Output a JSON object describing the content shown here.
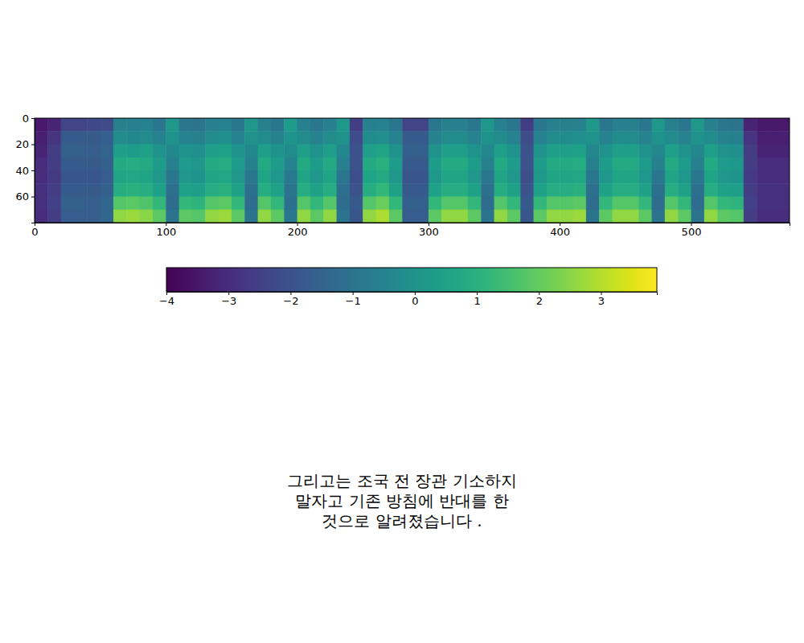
{
  "chart_data": {
    "type": "heatmap",
    "xlim": [
      0,
      575
    ],
    "ylim": [
      80,
      0
    ],
    "xticks": [
      0,
      100,
      200,
      300,
      400,
      500
    ],
    "yticks": [
      0,
      20,
      40,
      60
    ],
    "x_bins": [
      0,
      10,
      20,
      30,
      40,
      50,
      60,
      70,
      80,
      90,
      100,
      110,
      120,
      130,
      140,
      150,
      160,
      170,
      180,
      190,
      200,
      210,
      220,
      230,
      240,
      250,
      260,
      270,
      280,
      290,
      300,
      310,
      320,
      330,
      340,
      350,
      360,
      370,
      380,
      390,
      400,
      410,
      420,
      430,
      440,
      450,
      460,
      470,
      480,
      490,
      500,
      510,
      520,
      530,
      540,
      550,
      560,
      570,
      575
    ],
    "y_bins": [
      0,
      10,
      20,
      30,
      40,
      50,
      60,
      70,
      80
    ],
    "cells": [
      [
        -3.5,
        -3.3,
        -3.2,
        -3.0,
        -3.0,
        -2.9,
        -2.9,
        -3.0
      ],
      [
        -3.2,
        -2.8,
        -2.6,
        -2.6,
        -2.7,
        -2.6,
        -2.5,
        -2.6
      ],
      [
        -2.4,
        -1.8,
        -1.6,
        -1.8,
        -1.9,
        -1.8,
        -1.6,
        -1.7
      ],
      [
        -2.4,
        -1.8,
        -1.6,
        -1.8,
        -1.9,
        -1.8,
        -1.6,
        -1.7
      ],
      [
        -2.3,
        -1.8,
        -1.7,
        -1.8,
        -1.9,
        -1.8,
        -1.7,
        -1.7
      ],
      [
        -2.2,
        -1.6,
        -1.5,
        -1.6,
        -1.7,
        -1.6,
        -1.4,
        -1.4
      ],
      [
        -0.6,
        -0.2,
        0.4,
        0.8,
        0.6,
        0.9,
        1.8,
        2.6
      ],
      [
        -0.6,
        -0.3,
        0.3,
        0.9,
        0.7,
        1.0,
        1.9,
        2.7
      ],
      [
        -0.5,
        -0.2,
        0.5,
        0.8,
        0.6,
        0.9,
        1.7,
        2.5
      ],
      [
        -0.9,
        -0.5,
        0.0,
        0.3,
        0.2,
        0.5,
        1.2,
        1.9
      ],
      [
        0.2,
        0.0,
        -0.3,
        -0.6,
        -0.9,
        -1.1,
        -1.2,
        -1.0
      ],
      [
        -0.9,
        -0.5,
        0.0,
        0.3,
        0.2,
        0.5,
        1.2,
        1.9
      ],
      [
        -1.0,
        -0.6,
        -0.1,
        0.2,
        0.1,
        0.4,
        1.1,
        1.8
      ],
      [
        -0.6,
        -0.2,
        0.4,
        0.8,
        0.6,
        0.9,
        1.8,
        2.6
      ],
      [
        -0.5,
        -0.1,
        0.5,
        0.9,
        0.7,
        1.0,
        1.9,
        2.7
      ],
      [
        -0.9,
        -0.5,
        0.0,
        0.3,
        0.2,
        0.5,
        1.2,
        1.9
      ],
      [
        0.2,
        0.0,
        -0.3,
        -0.6,
        -0.9,
        -1.1,
        -1.2,
        -1.0
      ],
      [
        -0.6,
        -0.2,
        0.4,
        0.8,
        0.6,
        0.9,
        1.8,
        2.6
      ],
      [
        -0.9,
        -0.5,
        0.0,
        0.3,
        0.2,
        0.5,
        1.2,
        1.9
      ],
      [
        0.3,
        0.1,
        -0.2,
        -0.5,
        -0.8,
        -1.0,
        -1.1,
        -0.9
      ],
      [
        -0.6,
        -0.2,
        0.4,
        0.8,
        0.6,
        0.9,
        1.8,
        2.6
      ],
      [
        -0.9,
        -0.5,
        0.0,
        0.3,
        0.2,
        0.5,
        1.2,
        1.9
      ],
      [
        -0.6,
        -0.2,
        0.4,
        0.8,
        0.6,
        0.9,
        1.8,
        2.6
      ],
      [
        0.2,
        0.0,
        -0.3,
        -0.6,
        -0.9,
        -1.1,
        -1.2,
        -1.0
      ],
      [
        -2.6,
        -2.2,
        -2.0,
        -2.0,
        -2.1,
        -2.0,
        -1.8,
        -1.9
      ],
      [
        -0.6,
        -0.2,
        0.4,
        0.8,
        0.6,
        0.9,
        1.8,
        2.6
      ],
      [
        -0.5,
        -0.1,
        0.6,
        1.0,
        0.8,
        1.2,
        2.1,
        2.9
      ],
      [
        -0.9,
        -0.5,
        0.0,
        0.3,
        0.2,
        0.5,
        1.2,
        1.9
      ],
      [
        -2.4,
        -1.8,
        -1.6,
        -1.8,
        -1.9,
        -1.8,
        -1.6,
        -1.7
      ],
      [
        -2.4,
        -1.8,
        -1.6,
        -1.8,
        -1.9,
        -1.8,
        -1.6,
        -1.7
      ],
      [
        -0.9,
        -0.5,
        0.0,
        0.3,
        0.2,
        0.5,
        1.2,
        1.9
      ],
      [
        -0.6,
        -0.2,
        0.4,
        0.8,
        0.6,
        0.9,
        1.8,
        2.6
      ],
      [
        -0.6,
        -0.2,
        0.4,
        0.8,
        0.6,
        0.9,
        1.8,
        2.6
      ],
      [
        -0.9,
        -0.5,
        0.0,
        0.3,
        0.2,
        0.5,
        1.2,
        1.9
      ],
      [
        0.2,
        0.0,
        -0.3,
        -0.6,
        -0.9,
        -1.1,
        -1.2,
        -1.0
      ],
      [
        -0.6,
        -0.2,
        0.4,
        0.8,
        0.6,
        0.9,
        1.8,
        2.6
      ],
      [
        -0.9,
        -0.5,
        0.0,
        0.3,
        0.2,
        0.5,
        1.2,
        1.9
      ],
      [
        -2.6,
        -2.2,
        -2.0,
        -2.0,
        -2.1,
        -2.0,
        -1.8,
        -1.9
      ],
      [
        -0.9,
        -0.5,
        0.0,
        0.3,
        0.2,
        0.5,
        1.2,
        1.9
      ],
      [
        -0.6,
        -0.2,
        0.4,
        0.8,
        0.6,
        0.9,
        1.8,
        2.6
      ],
      [
        -0.6,
        -0.2,
        0.4,
        0.8,
        0.6,
        0.9,
        1.8,
        2.6
      ],
      [
        -0.5,
        -0.1,
        0.5,
        0.9,
        0.7,
        1.0,
        1.9,
        2.7
      ],
      [
        0.2,
        0.0,
        -0.3,
        -0.6,
        -0.9,
        -1.1,
        -1.2,
        -1.0
      ],
      [
        -0.9,
        -0.5,
        0.0,
        0.3,
        0.2,
        0.5,
        1.2,
        1.9
      ],
      [
        -0.6,
        -0.2,
        0.4,
        0.8,
        0.6,
        0.9,
        1.8,
        2.6
      ],
      [
        -0.6,
        -0.2,
        0.4,
        0.8,
        0.6,
        0.9,
        1.8,
        2.6
      ],
      [
        -0.9,
        -0.5,
        0.0,
        0.3,
        0.2,
        0.5,
        1.2,
        1.9
      ],
      [
        0.2,
        0.0,
        -0.3,
        -0.6,
        -0.9,
        -1.1,
        -1.2,
        -1.0
      ],
      [
        -0.6,
        -0.2,
        0.4,
        0.8,
        0.6,
        0.9,
        1.8,
        2.6
      ],
      [
        -0.9,
        -0.5,
        0.0,
        0.3,
        0.2,
        0.5,
        1.2,
        1.9
      ],
      [
        0.2,
        0.0,
        -0.3,
        -0.6,
        -0.9,
        -1.1,
        -1.2,
        -1.0
      ],
      [
        -0.6,
        -0.2,
        0.4,
        0.8,
        0.6,
        0.9,
        1.8,
        2.6
      ],
      [
        -0.9,
        -0.5,
        0.0,
        0.3,
        0.2,
        0.5,
        1.2,
        1.9
      ],
      [
        -1.0,
        -0.6,
        -0.1,
        0.2,
        0.1,
        0.4,
        1.1,
        1.8
      ],
      [
        -3.2,
        -2.8,
        -2.6,
        -2.6,
        -2.7,
        -2.6,
        -2.5,
        -2.6
      ],
      [
        -3.5,
        -3.3,
        -3.2,
        -3.0,
        -3.0,
        -2.9,
        -2.9,
        -3.0
      ],
      [
        -3.5,
        -3.3,
        -3.2,
        -3.0,
        -3.0,
        -2.9,
        -2.9,
        -3.0
      ],
      [
        -3.5,
        -3.3,
        -3.2,
        -3.0,
        -3.0,
        -2.9,
        -2.9,
        -3.0
      ]
    ],
    "color_range": [
      -4,
      3.9
    ],
    "color_ticks": [
      -4,
      -3,
      -2,
      -1,
      0,
      1,
      2,
      3
    ],
    "annotations": [
      "그리고는 조국 전 장관 기소하지",
      "말자고 기존 방침에 반대를 한",
      "것으로 알려졌습니다 ."
    ]
  }
}
